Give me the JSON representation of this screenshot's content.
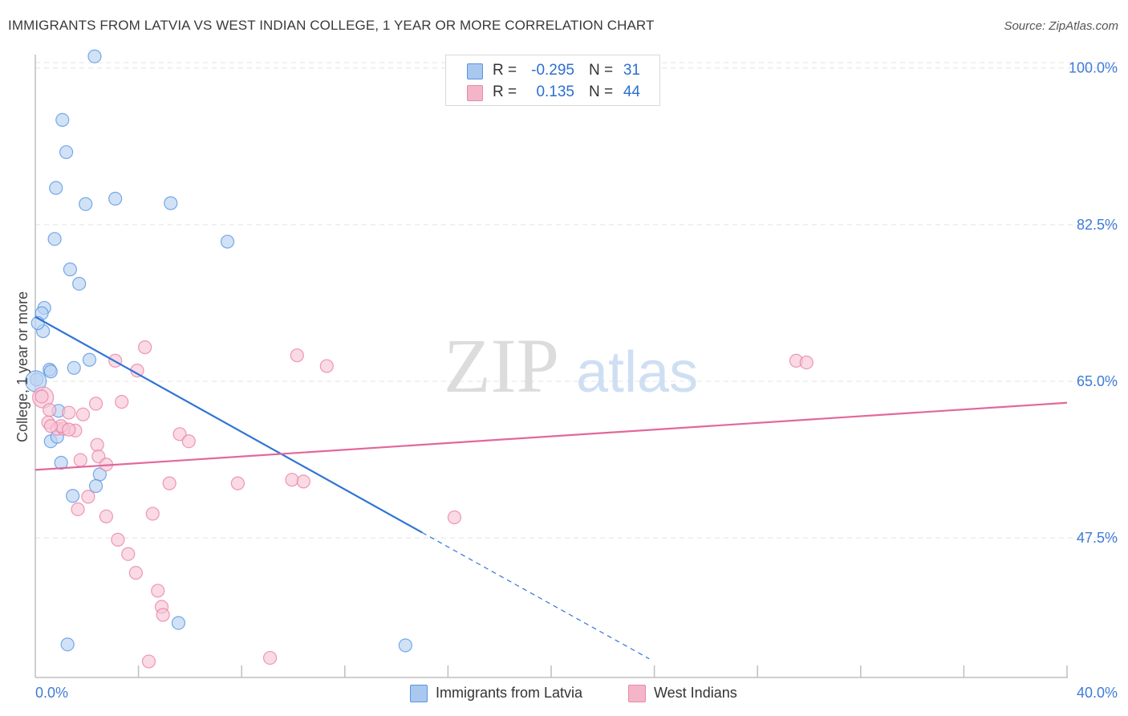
{
  "title": "IMMIGRANTS FROM LATVIA VS WEST INDIAN COLLEGE, 1 YEAR OR MORE CORRELATION CHART",
  "source": "Source: ZipAtlas.com",
  "watermark": {
    "zip": "ZIP",
    "atlas": "atlas"
  },
  "stats": [
    {
      "r_label": "R =",
      "r_value": "-0.295",
      "n_label": "N =",
      "n_value": "31",
      "color": "#a9c8f0"
    },
    {
      "r_label": "R =",
      "r_value": "0.135",
      "n_label": "N =",
      "n_value": "44",
      "color": "#f5b5c8"
    }
  ],
  "legend": [
    {
      "label": "Immigrants from Latvia",
      "color": "#a9c8f0"
    },
    {
      "label": "West Indians",
      "color": "#f5b5c8"
    }
  ],
  "chart_data": {
    "type": "scatter",
    "title": "IMMIGRANTS FROM LATVIA VS WEST INDIAN COLLEGE, 1 YEAR OR MORE CORRELATION CHART",
    "xlabel": "",
    "ylabel": "College, 1 year or more",
    "xlim": [
      0,
      40
    ],
    "ylim": [
      32,
      101.5
    ],
    "x_tick_labels": [
      "0.0%",
      "40.0%"
    ],
    "y_ticks": [
      47.5,
      65.0,
      82.5,
      100.0
    ],
    "y_tick_labels": [
      "47.5%",
      "65.0%",
      "82.5%",
      "100.0%"
    ],
    "grid": true,
    "legend_position": "bottom-center",
    "series": [
      {
        "name": "Immigrants from Latvia",
        "color": "#4f8fe0",
        "fill": "#b8d2f3",
        "points": [
          [
            2.3,
            101.3
          ],
          [
            1.05,
            94.2
          ],
          [
            1.2,
            90.6
          ],
          [
            0.8,
            86.6
          ],
          [
            1.95,
            84.8
          ],
          [
            3.1,
            85.4
          ],
          [
            5.25,
            84.9
          ],
          [
            0.75,
            80.9
          ],
          [
            7.45,
            80.6
          ],
          [
            1.35,
            77.5
          ],
          [
            1.7,
            75.9
          ],
          [
            0.35,
            73.2
          ],
          [
            0.25,
            72.6
          ],
          [
            0.3,
            70.6
          ],
          [
            0.1,
            71.5
          ],
          [
            2.1,
            67.4
          ],
          [
            1.5,
            66.5
          ],
          [
            0.55,
            66.3
          ],
          [
            0.6,
            66.1
          ],
          [
            0.05,
            65.2
          ],
          [
            0.9,
            61.7
          ],
          [
            0.6,
            58.3
          ],
          [
            0.85,
            58.8
          ],
          [
            1.0,
            55.9
          ],
          [
            2.5,
            54.6
          ],
          [
            2.35,
            53.3
          ],
          [
            1.45,
            52.2
          ],
          [
            5.55,
            38.0
          ],
          [
            1.25,
            35.6
          ],
          [
            14.35,
            35.5
          ],
          [
            0.02,
            65.0
          ]
        ]
      },
      {
        "name": "West Indians",
        "color": "#e87aa0",
        "fill": "#f7c6d5",
        "points": [
          [
            0.3,
            63.2
          ],
          [
            0.55,
            61.8
          ],
          [
            1.3,
            61.5
          ],
          [
            1.85,
            61.3
          ],
          [
            2.35,
            62.5
          ],
          [
            3.35,
            62.7
          ],
          [
            0.5,
            60.4
          ],
          [
            0.85,
            59.7
          ],
          [
            1.1,
            59.7
          ],
          [
            1.0,
            60.0
          ],
          [
            2.4,
            57.9
          ],
          [
            1.75,
            56.2
          ],
          [
            2.45,
            56.6
          ],
          [
            2.75,
            55.7
          ],
          [
            5.6,
            59.1
          ],
          [
            5.95,
            58.3
          ],
          [
            3.1,
            67.3
          ],
          [
            4.25,
            68.8
          ],
          [
            3.95,
            66.2
          ],
          [
            10.15,
            67.9
          ],
          [
            11.3,
            66.7
          ],
          [
            29.5,
            67.3
          ],
          [
            29.9,
            67.1
          ],
          [
            5.2,
            53.6
          ],
          [
            7.85,
            53.6
          ],
          [
            9.95,
            54.0
          ],
          [
            10.4,
            53.8
          ],
          [
            1.65,
            50.7
          ],
          [
            2.05,
            52.1
          ],
          [
            2.75,
            49.9
          ],
          [
            4.55,
            50.2
          ],
          [
            16.25,
            49.8
          ],
          [
            3.2,
            47.3
          ],
          [
            3.6,
            45.7
          ],
          [
            3.9,
            43.6
          ],
          [
            4.75,
            41.6
          ],
          [
            4.9,
            39.8
          ],
          [
            4.95,
            38.9
          ],
          [
            4.4,
            33.7
          ],
          [
            9.1,
            34.1
          ],
          [
            0.25,
            63.3
          ],
          [
            1.55,
            59.5
          ],
          [
            0.6,
            60.0
          ],
          [
            1.3,
            59.6
          ]
        ]
      }
    ],
    "trend_lines": [
      {
        "series": "Immigrants from Latvia",
        "solid": [
          [
            0.0,
            72.2
          ],
          [
            15.0,
            48.1
          ]
        ],
        "dashed": [
          [
            15.0,
            48.1
          ],
          [
            23.8,
            34.0
          ]
        ]
      },
      {
        "series": "West Indians",
        "solid": [
          [
            0.0,
            55.1
          ],
          [
            40.0,
            62.6
          ]
        ]
      }
    ]
  }
}
